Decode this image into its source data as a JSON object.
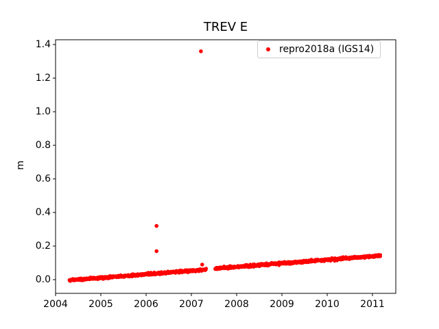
{
  "chart_data": {
    "type": "scatter",
    "title": "TREV E",
    "xlabel": "",
    "ylabel": "m",
    "xlim": [
      2004.0,
      2011.515
    ],
    "ylim": [
      -0.0816,
      1.4286
    ],
    "xticks": [
      "2004",
      "2005",
      "2006",
      "2007",
      "2008",
      "2009",
      "2010",
      "2011"
    ],
    "yticks": [
      "0.0",
      "0.2",
      "0.4",
      "0.6",
      "0.8",
      "1.0",
      "1.2",
      "1.4"
    ],
    "grid": false,
    "axis_color": "#000000",
    "legend": {
      "position": "upper right",
      "border_color": "#cccccc",
      "entries": [
        {
          "label": "repro2018a (IGS14)",
          "color": "#ff0000",
          "marker": "dot"
        }
      ]
    },
    "series": [
      {
        "name": "repro2018a (IGS14)",
        "color": "#ff0000",
        "marker": "dot",
        "trend_segments": [
          {
            "x_start": 2004.3,
            "x_end": 2007.33,
            "y_start": -0.004,
            "y_end": 0.06,
            "points": 1100,
            "noise_std": 0.0035
          },
          {
            "x_start": 2007.52,
            "x_end": 2011.18,
            "y_start": 0.066,
            "y_end": 0.143,
            "points": 1330,
            "noise_std": 0.0035
          }
        ],
        "outliers": [
          {
            "x": 2006.23,
            "y": 0.32
          },
          {
            "x": 2006.23,
            "y": 0.17
          },
          {
            "x": 2007.21,
            "y": 1.36
          },
          {
            "x": 2007.24,
            "y": 0.09
          }
        ]
      }
    ]
  }
}
